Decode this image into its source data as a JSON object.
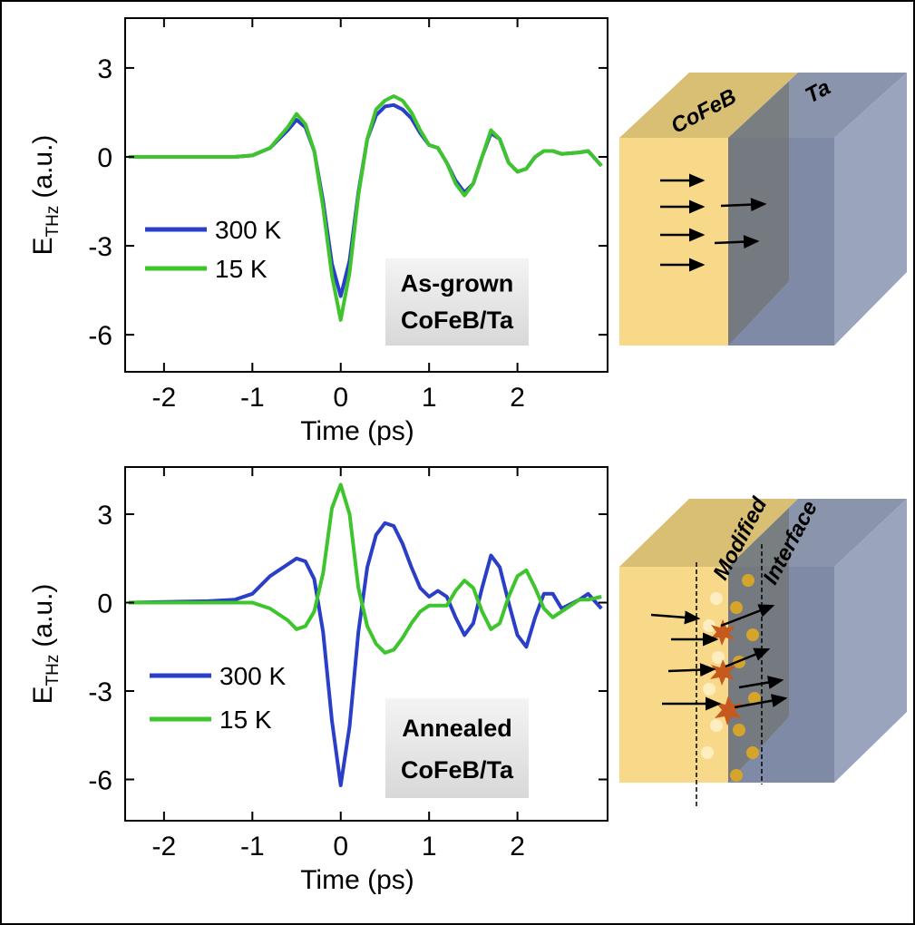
{
  "chart_data": [
    {
      "type": "line",
      "x": [
        -2.4,
        -1.5,
        -1.2,
        -1.0,
        -0.8,
        -0.6,
        -0.5,
        -0.4,
        -0.3,
        -0.2,
        -0.1,
        0,
        0.1,
        0.2,
        0.3,
        0.4,
        0.5,
        0.6,
        0.7,
        0.8,
        0.9,
        1.0,
        1.1,
        1.2,
        1.3,
        1.4,
        1.5,
        1.6,
        1.7,
        1.8,
        1.9,
        2.0,
        2.1,
        2.2,
        2.3,
        2.4,
        2.5,
        2.7,
        2.8,
        2.95
      ],
      "series": [
        {
          "name": "300 K",
          "color": "#2a3ec8",
          "values": [
            0,
            0,
            0,
            0.05,
            0.3,
            0.9,
            1.25,
            1.0,
            0.2,
            -1.5,
            -3.6,
            -4.7,
            -3.5,
            -1.2,
            0.6,
            1.4,
            1.7,
            1.75,
            1.6,
            1.3,
            0.8,
            0.4,
            0.3,
            -0.2,
            -0.8,
            -1.2,
            -0.9,
            0.0,
            0.8,
            0.6,
            -0.2,
            -0.5,
            -0.4,
            0.0,
            0.2,
            0.2,
            0.1,
            0.15,
            0.2,
            -0.3
          ]
        },
        {
          "name": "15 K",
          "color": "#3ec42c",
          "values": [
            0,
            0,
            0,
            0.05,
            0.3,
            1.0,
            1.45,
            1.1,
            0.2,
            -1.7,
            -4.0,
            -5.5,
            -3.9,
            -1.3,
            0.6,
            1.6,
            1.9,
            2.05,
            1.9,
            1.5,
            0.9,
            0.4,
            0.3,
            -0.2,
            -0.9,
            -1.3,
            -0.9,
            0.0,
            0.9,
            0.6,
            -0.2,
            -0.5,
            -0.4,
            0.0,
            0.2,
            0.2,
            0.1,
            0.15,
            0.2,
            -0.3
          ]
        }
      ],
      "xlim": [
        -2.44,
        3.02
      ],
      "ylim": [
        -7.25,
        4.68
      ],
      "xticks": [
        -2,
        -1,
        0,
        1,
        2
      ],
      "yticks": [
        -6,
        -3,
        0,
        3
      ],
      "x_label": "Time (ps)",
      "y_label": "E",
      "y_label_sub": "THz",
      "y_label_unit": "(a.u.)",
      "annotation": [
        "As-grown",
        "CoFeB/Ta"
      ]
    },
    {
      "type": "line",
      "x": [
        -2.4,
        -1.5,
        -1.2,
        -1.0,
        -0.8,
        -0.6,
        -0.5,
        -0.4,
        -0.3,
        -0.2,
        -0.1,
        0,
        0.1,
        0.2,
        0.3,
        0.4,
        0.5,
        0.6,
        0.7,
        0.8,
        0.9,
        1.0,
        1.1,
        1.2,
        1.3,
        1.4,
        1.5,
        1.6,
        1.7,
        1.8,
        1.9,
        2.0,
        2.1,
        2.2,
        2.3,
        2.4,
        2.5,
        2.7,
        2.8,
        2.95
      ],
      "series": [
        {
          "name": "300 K",
          "color": "#2a3ec8",
          "values": [
            0,
            0.05,
            0.1,
            0.3,
            0.9,
            1.3,
            1.5,
            1.4,
            0.8,
            -1.0,
            -4.0,
            -6.2,
            -4.2,
            -1.0,
            1.2,
            2.3,
            2.7,
            2.6,
            2.0,
            1.2,
            0.5,
            0.2,
            0.4,
            0.2,
            -0.5,
            -1.1,
            -0.7,
            0.5,
            1.6,
            1.2,
            0.0,
            -1.1,
            -1.5,
            -0.5,
            0.3,
            0.3,
            -0.2,
            0.1,
            0.3,
            -0.2
          ]
        },
        {
          "name": "15 K",
          "color": "#3ec42c",
          "values": [
            0,
            0,
            0,
            0,
            -0.2,
            -0.6,
            -0.9,
            -0.8,
            -0.3,
            1.0,
            3.2,
            4.0,
            3.0,
            0.5,
            -0.8,
            -1.4,
            -1.7,
            -1.6,
            -1.2,
            -0.7,
            -0.3,
            -0.1,
            -0.1,
            -0.1,
            0.4,
            0.75,
            0.5,
            -0.3,
            -0.9,
            -0.7,
            0.2,
            0.9,
            1.1,
            0.5,
            -0.2,
            -0.5,
            -0.3,
            0.1,
            0.1,
            0.2
          ]
        }
      ],
      "xlim": [
        -2.44,
        3.02
      ],
      "ylim": [
        -7.4,
        4.6
      ],
      "xticks": [
        -2,
        -1,
        0,
        1,
        2
      ],
      "yticks": [
        -6,
        -3,
        0,
        3
      ],
      "x_label": "Time (ps)",
      "y_label": "E",
      "y_label_sub": "THz",
      "y_label_unit": "(a.u.)",
      "annotation": [
        "Annealed",
        "CoFeB/Ta"
      ]
    }
  ],
  "diagrams": [
    {
      "labels": [
        "CoFeB",
        "Ta"
      ]
    },
    {
      "labels": [
        "Modified",
        "Interface"
      ]
    }
  ]
}
